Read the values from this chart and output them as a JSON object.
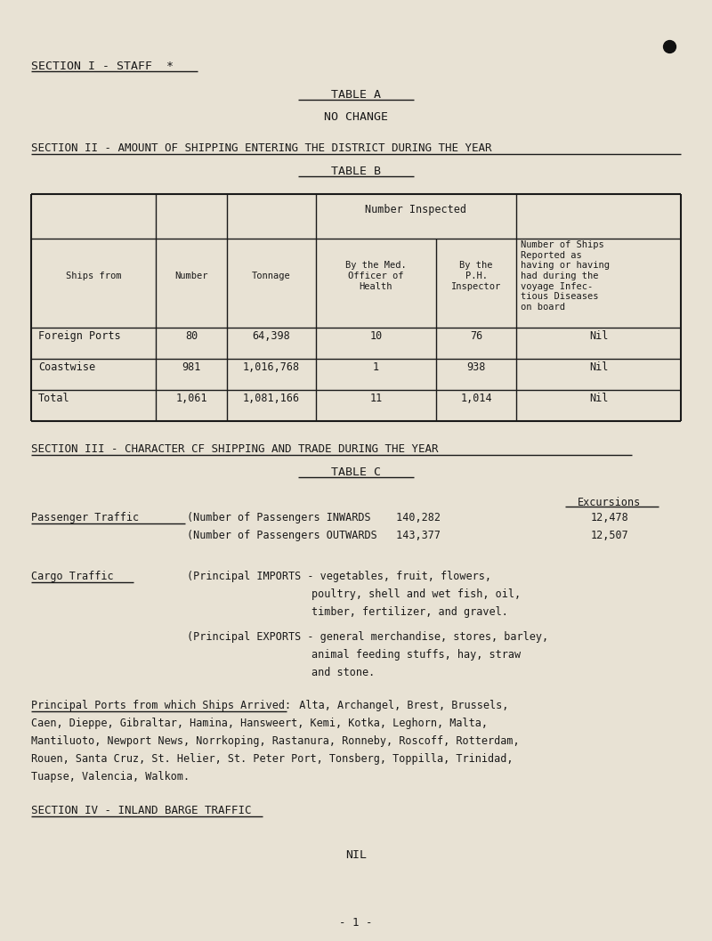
{
  "bg_color": "#e8e2d4",
  "text_color": "#1a1a1a",
  "font_family": "monospace",
  "fig_w": 8.0,
  "fig_h": 10.57,
  "dpi": 100,
  "section1_heading": "SECTION I - STAFF  *",
  "table_a_label": "TABLE A",
  "no_change": "NO CHANGE",
  "section2_heading": "SECTION II - AMOUNT OF SHIPPING ENTERING THE DISTRICT DURING THE YEAR",
  "table_b_label": "TABLE B",
  "table_b_rows": [
    [
      "Foreign Ports",
      "80",
      "64,398",
      "10",
      "76",
      "Nil"
    ],
    [
      "Coastwise",
      "981",
      "1,016,768",
      "1",
      "938",
      "Nil"
    ],
    [
      "Total",
      "1,061",
      "1,081,166",
      "11",
      "1,014",
      "Nil"
    ]
  ],
  "section3_heading": "SECTION III - CHARACTER CF SHIPPING AND TRADE DURING THE YEAR",
  "table_c_label": "TABLE C",
  "excursions_label": "Excursions",
  "passenger_traffic_label": "Passenger Traffic",
  "inwards_line": "(Number of Passengers INWARDS    140,282",
  "inwards_excursions": "12,478",
  "outwards_line": "(Number of Passengers OUTWARDS   143,377",
  "outwards_excursions": "12,507",
  "cargo_traffic_label": "Cargo Traffic",
  "imports_line1": "(Principal IMPORTS - vegetables, fruit, flowers,",
  "imports_line2": "poultry, shell and wet fish, oil,",
  "imports_line3": "timber, fertilizer, and gravel.",
  "exports_line1": "(Principal EXPORTS - general merchandise, stores, barley,",
  "exports_line2": "animal feeding stuffs, hay, straw",
  "exports_line3": "and stone.",
  "principal_ports_label": "Principal Ports from which Ships Arrived:",
  "principal_ports_line1": "  Alta, Archangel, Brest, Brussels,",
  "principal_ports_line2": "Caen, Dieppe, Gibraltar, Hamina, Hansweert, Kemi, Kotka, Leghorn, Malta,",
  "principal_ports_line3": "Mantiluoto, Newport News, Norrkoping, Rastanura, Ronneby, Roscoff, Rotterdam,",
  "principal_ports_line4": "Rouen, Santa Cruz, St. Helier, St. Peter Port, Tonsberg, Toppilla, Trinidad,",
  "principal_ports_line5": "Tuapse, Valencia, Walkom.",
  "section4_heading": "SECTION IV - INLAND BARGE TRAFFIC",
  "section4_content": "NIL",
  "page_number": "- 1 -"
}
